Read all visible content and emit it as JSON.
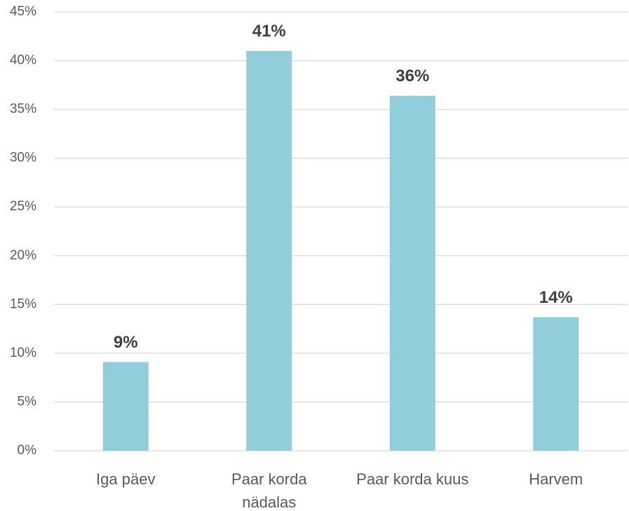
{
  "chart_data": {
    "type": "bar",
    "categories": [
      "Iga päev",
      "Paar korda nädalas",
      "Paar korda kuus",
      "Harvem"
    ],
    "values": [
      9.1,
      41,
      36.4,
      13.7
    ],
    "value_labels": [
      "9%",
      "41%",
      "36%",
      "14%"
    ],
    "color": "#92cddc",
    "ylim": [
      0,
      45
    ],
    "yticks": [
      {
        "value": 0,
        "label": "0%"
      },
      {
        "value": 5,
        "label": "5%"
      },
      {
        "value": 10,
        "label": "10%"
      },
      {
        "value": 15,
        "label": "15%"
      },
      {
        "value": 20,
        "label": "20%"
      },
      {
        "value": 25,
        "label": "25%"
      },
      {
        "value": 30,
        "label": "30%"
      },
      {
        "value": 35,
        "label": "35%"
      },
      {
        "value": 40,
        "label": "40%"
      },
      {
        "value": 45,
        "label": "45%"
      }
    ],
    "grid": true
  }
}
